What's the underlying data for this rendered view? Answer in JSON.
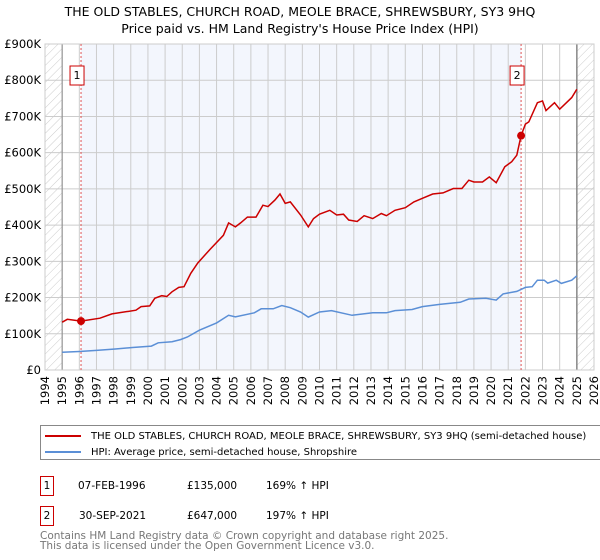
{
  "title_line1": "THE OLD STABLES, CHURCH ROAD, MEOLE BRACE, SHREWSBURY, SY3 9HQ",
  "title_line2": "Price paid vs. HM Land Registry's House Price Index (HPI)",
  "chart_data": {
    "type": "line",
    "title": "THE OLD STABLES, CHURCH ROAD, MEOLE BRACE, SHREWSBURY, SY3 9HQ — Price paid vs. HM Land Registry's House Price Index (HPI)",
    "xlim": [
      1994,
      2026
    ],
    "ylim": [
      0,
      900000
    ],
    "x_ticks": [
      "1994",
      "1995",
      "1996",
      "1997",
      "1998",
      "1999",
      "2000",
      "2001",
      "2002",
      "2003",
      "2004",
      "2005",
      "2006",
      "2007",
      "2008",
      "2009",
      "2010",
      "2011",
      "2012",
      "2013",
      "2014",
      "2015",
      "2016",
      "2017",
      "2018",
      "2019",
      "2020",
      "2021",
      "2022",
      "2023",
      "2024",
      "2025",
      "2026"
    ],
    "y_ticks": [
      {
        "v": 0,
        "label": "£0"
      },
      {
        "v": 100000,
        "label": "£100K"
      },
      {
        "v": 200000,
        "label": "£200K"
      },
      {
        "v": 300000,
        "label": "£300K"
      },
      {
        "v": 400000,
        "label": "£400K"
      },
      {
        "v": 500000,
        "label": "£500K"
      },
      {
        "v": 600000,
        "label": "£600K"
      },
      {
        "v": 700000,
        "label": "£700K"
      },
      {
        "v": 800000,
        "label": "£800K"
      },
      {
        "v": 900000,
        "label": "£900K"
      }
    ],
    "grid": true,
    "data_range": [
      1995,
      2025
    ],
    "ownership_shaded": [
      1996.1,
      2021.75
    ],
    "series": [
      {
        "name": "THE OLD STABLES, CHURCH ROAD, MEOLE BRACE, SHREWSBURY, SY3 9HQ (semi-detached house)",
        "color": "#cc0000",
        "x": [
          1995,
          1995.3,
          1996.1,
          1997.2,
          1997.9,
          1999.3,
          1999.6,
          2000.1,
          2000.4,
          2000.8,
          2001.1,
          2001.4,
          2001.8,
          2002.1,
          2002.5,
          2002.9,
          2003.6,
          2004.4,
          2004.7,
          2005.1,
          2005.4,
          2005.8,
          2006.3,
          2006.7,
          2007.0,
          2007.4,
          2007.7,
          2008.0,
          2008.3,
          2008.9,
          2009.35,
          2009.65,
          2010.0,
          2010.6,
          2011.0,
          2011.4,
          2011.7,
          2012.2,
          2012.6,
          2013.1,
          2013.6,
          2013.9,
          2014.4,
          2015.0,
          2015.5,
          2016.0,
          2016.6,
          2017.2,
          2017.8,
          2018.3,
          2018.7,
          2019.0,
          2019.5,
          2019.9,
          2020.3,
          2020.8,
          2021.2,
          2021.5,
          2021.75,
          2022.0,
          2022.2,
          2022.7,
          2023.0,
          2023.2,
          2023.7,
          2024.0,
          2024.7,
          2025.0
        ],
        "values": [
          132000,
          140000,
          135000,
          143000,
          155000,
          165000,
          175000,
          177000,
          198000,
          205000,
          203000,
          216000,
          228000,
          230000,
          267000,
          295000,
          332000,
          372000,
          406000,
          395000,
          406000,
          422000,
          422000,
          455000,
          451000,
          469000,
          486000,
          460000,
          464000,
          428000,
          395000,
          418000,
          430000,
          441000,
          428000,
          430000,
          414000,
          410000,
          426000,
          418000,
          432000,
          426000,
          441000,
          448000,
          464000,
          474000,
          486000,
          489000,
          501000,
          501000,
          524000,
          519000,
          519000,
          533000,
          517000,
          561000,
          575000,
          593000,
          647000,
          679000,
          685000,
          738000,
          743000,
          716000,
          738000,
          720000,
          752000,
          775000
        ]
      },
      {
        "name": "HPI: Average price, semi-detached house, Shropshire",
        "color": "#5b8fd6",
        "x": [
          1995,
          1996,
          1997,
          1998.1,
          1999.1,
          2000.2,
          2000.6,
          2001.4,
          2001.9,
          2002.3,
          2003.0,
          2004.0,
          2004.7,
          2005.1,
          2006.2,
          2006.6,
          2007.3,
          2007.8,
          2008.3,
          2008.9,
          2009.35,
          2010.0,
          2010.7,
          2011.9,
          2013.1,
          2013.9,
          2014.4,
          2015.4,
          2016.0,
          2017.0,
          2018.2,
          2018.7,
          2019.7,
          2020.3,
          2020.7,
          2021.5,
          2022.0,
          2022.4,
          2022.7,
          2023.1,
          2023.3,
          2023.8,
          2024.1,
          2024.7,
          2025.0
        ],
        "values": [
          49000,
          51000,
          54000,
          58000,
          62000,
          66000,
          75000,
          78000,
          84000,
          91000,
          110000,
          130000,
          151000,
          147000,
          158000,
          169000,
          169000,
          178000,
          172000,
          160000,
          146000,
          160000,
          164000,
          151000,
          158000,
          158000,
          164000,
          167000,
          175000,
          181000,
          187000,
          196000,
          198000,
          193000,
          210000,
          217000,
          228000,
          230000,
          248000,
          248000,
          240000,
          248000,
          239000,
          248000,
          260000
        ]
      }
    ],
    "annotations": [
      {
        "label": "1",
        "x": 1996.1,
        "value": 135000
      },
      {
        "label": "2",
        "x": 2021.75,
        "value": 647000
      }
    ],
    "legend_placement": "below"
  },
  "legend": {
    "property": "THE OLD STABLES, CHURCH ROAD, MEOLE BRACE, SHREWSBURY, SY3 9HQ (semi-detached house)",
    "hpi": "HPI: Average price, semi-detached house, Shropshire"
  },
  "sales": [
    {
      "num": "1",
      "date": "07-FEB-1996",
      "price": "£135,000",
      "hpi": "169% ↑ HPI"
    },
    {
      "num": "2",
      "date": "30-SEP-2021",
      "price": "£647,000",
      "hpi": "197% ↑ HPI"
    }
  ],
  "footer": {
    "line1": "Contains HM Land Registry data © Crown copyright and database right 2025.",
    "line2": "This data is licensed under the Open Government Licence v3.0."
  }
}
